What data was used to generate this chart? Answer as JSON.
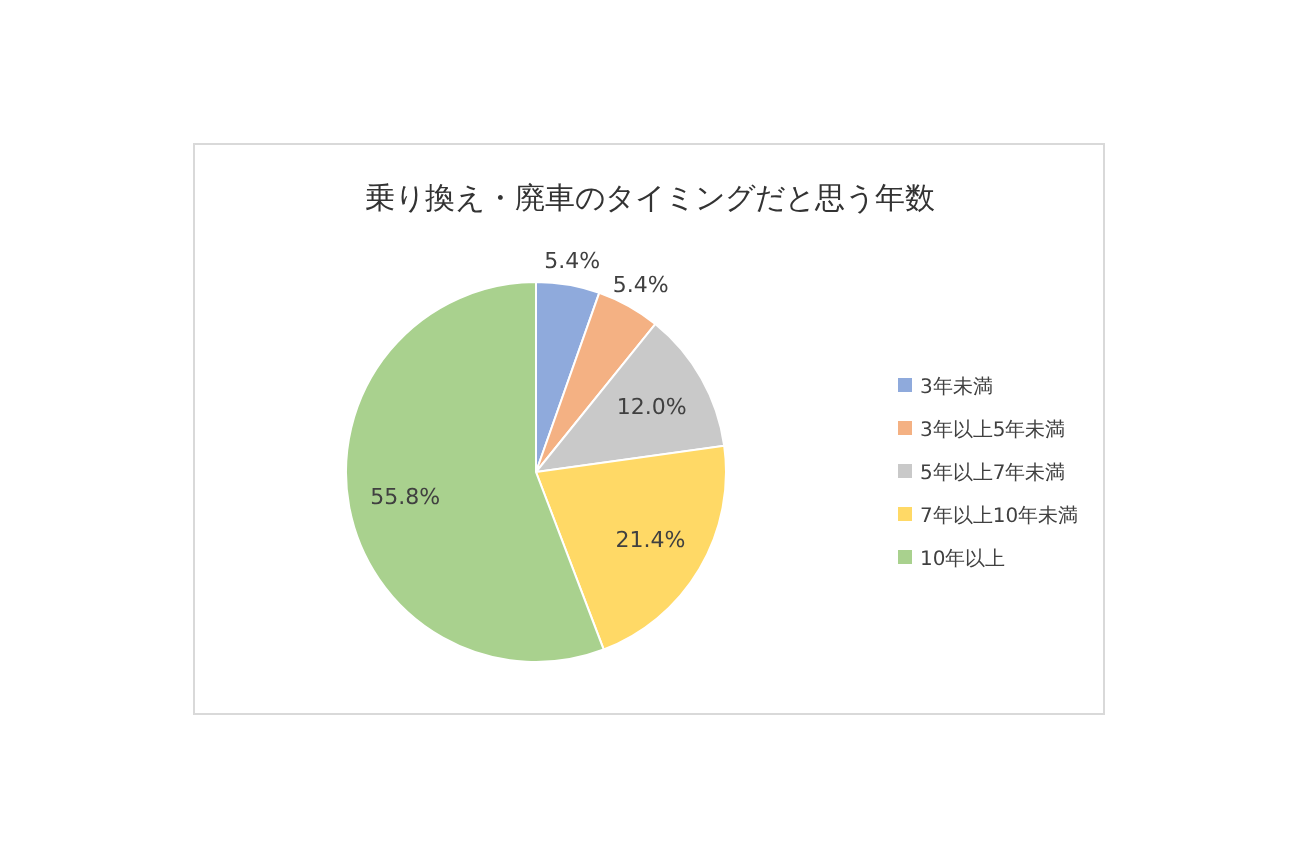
{
  "chart_data": {
    "type": "pie",
    "title": "乗り換え・廃車のタイミングだと思う年数",
    "categories": [
      "3年未満",
      "3年以上5年未満",
      "5年以上7年未満",
      "7年以上10年未満",
      "10年以上"
    ],
    "values": [
      5.4,
      5.4,
      12.0,
      21.4,
      55.8
    ],
    "value_labels": [
      "5.4%",
      "5.4%",
      "12.0%",
      "21.4%",
      "55.8%"
    ],
    "colors": [
      "#8faadc",
      "#f4b183",
      "#c9c9c9",
      "#ffd966",
      "#a9d18e"
    ],
    "legend": "right"
  }
}
